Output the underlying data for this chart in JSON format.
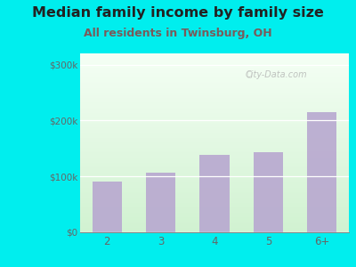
{
  "title": "Median family income by family size",
  "subtitle": "All residents in Twinsburg, OH",
  "categories": [
    "2",
    "3",
    "4",
    "5",
    "6+"
  ],
  "values": [
    90000,
    106000,
    138000,
    143000,
    215000
  ],
  "bar_color": "#b8a8d0",
  "bar_alpha": 0.9,
  "yticks": [
    0,
    100000,
    200000,
    300000
  ],
  "ytick_labels": [
    "$0",
    "$100k",
    "$200k",
    "$300k"
  ],
  "ylim": [
    0,
    320000
  ],
  "title_fontsize": 11.5,
  "subtitle_fontsize": 9,
  "outer_bg_color": "#00eeee",
  "title_color": "#222222",
  "subtitle_color": "#7a5a5a",
  "tick_label_color": "#666666",
  "watermark_text": "City-Data.com"
}
